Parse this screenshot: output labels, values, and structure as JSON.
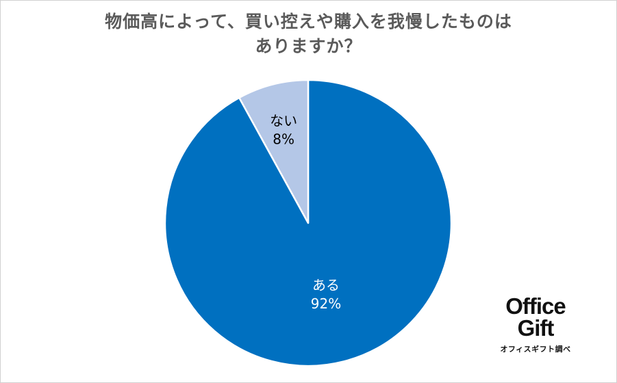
{
  "title": {
    "line1": "物価高によって、買い控えや購入を我慢したものは",
    "line2": "ありますか？"
  },
  "chart_data": {
    "type": "pie",
    "title": "物価高によって、買い控えや購入を我慢したものはありますか？",
    "start_angle_deg": 0,
    "direction": "clockwise",
    "slices": [
      {
        "label": "ある",
        "value": 92,
        "value_label": "92%",
        "color": "#0070c0",
        "text_color": "#ffffff"
      },
      {
        "label": "ない",
        "value": 8,
        "value_label": "8%",
        "color": "#b4c7e7",
        "text_color": "#000000"
      }
    ],
    "legend": "none"
  },
  "brand": {
    "line1": "Office",
    "line2": "Gift",
    "sub": "オフィスギフト調べ"
  }
}
